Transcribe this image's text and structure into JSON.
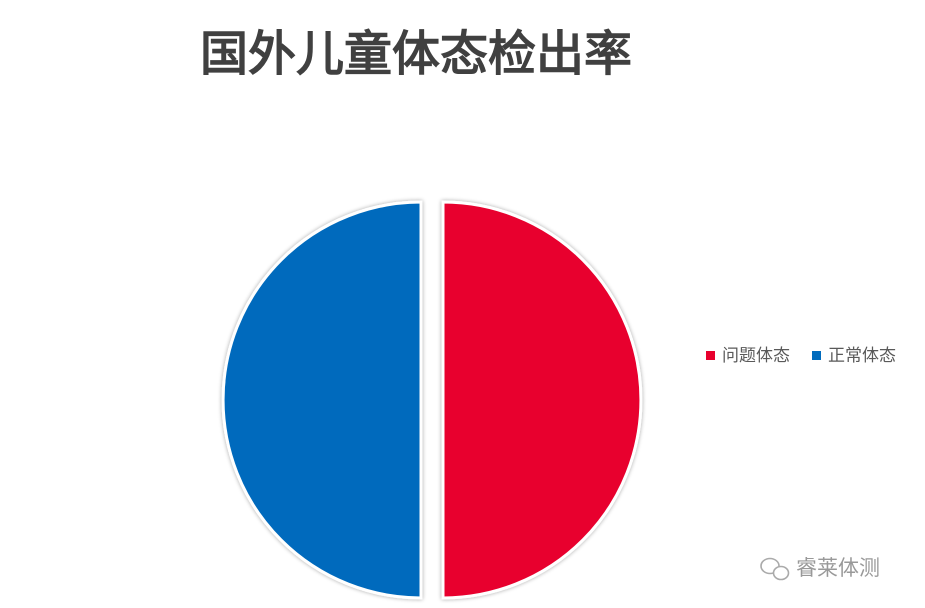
{
  "chart_data": {
    "type": "pie",
    "title": "国外儿童体态检出率",
    "categories": [
      "问题体态",
      "正常体态"
    ],
    "values": [
      50,
      50
    ],
    "colors": [
      "#e8002d",
      "#006bbd"
    ],
    "legend": "right"
  },
  "watermark": "睿莱体测"
}
